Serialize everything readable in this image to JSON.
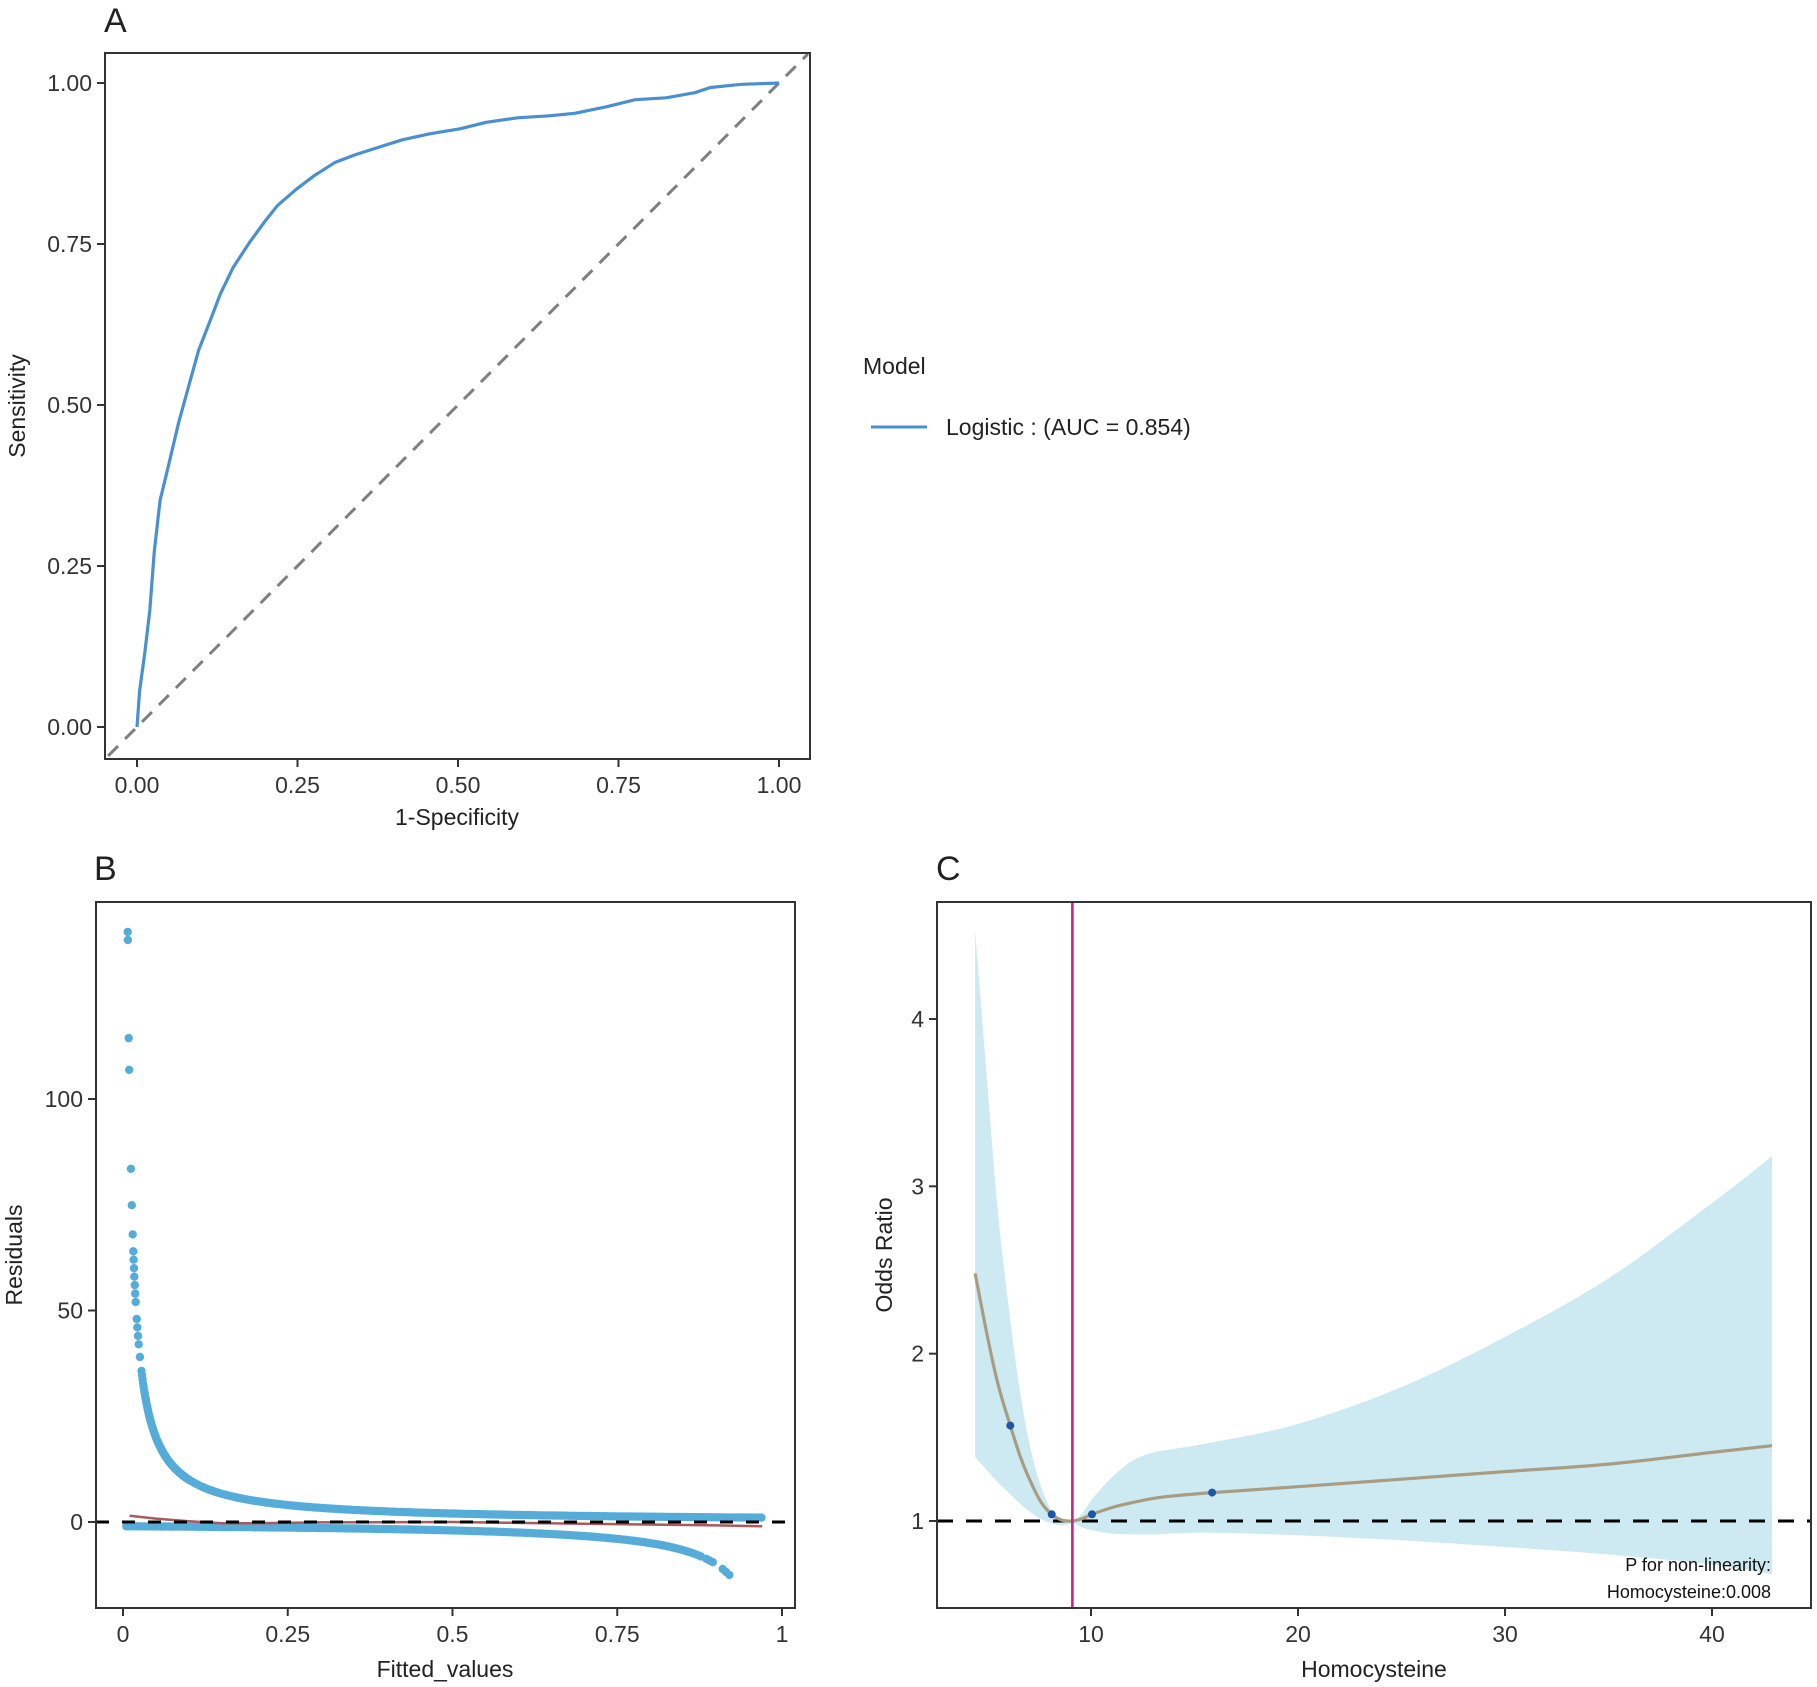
{
  "colors": {
    "roc_line": "#4A90D0",
    "diagonal": "#7F7F7F",
    "scatter": "#56ACD8",
    "loess": "#A85A5C",
    "zero_line": "#000000",
    "band": "#CDEAF2",
    "spline": "#A89C82",
    "knots": "#1F56A8",
    "reference_line": "#C2258C",
    "axis": "#333333"
  },
  "chart_data": [
    {
      "id": "A",
      "type": "line",
      "panel_label": "A",
      "xlabel": "1-Specificity",
      "ylabel": "Sensitivity",
      "xlim": [
        0,
        1
      ],
      "ylim": [
        0,
        1
      ],
      "xticks": [
        "0.00",
        "0.25",
        "0.50",
        "0.75",
        "1.00"
      ],
      "yticks": [
        "0.00",
        "0.25",
        "0.50",
        "0.75",
        "1.00"
      ],
      "grid": false,
      "legend": {
        "title": "Model",
        "placement": "right",
        "entries": [
          {
            "label": "Logistic : (AUC = 0.854)"
          }
        ]
      },
      "reference_diagonal": true,
      "series": [
        {
          "name": "Logistic",
          "auc": 0.854,
          "x": [
            0,
            0.004,
            0.012,
            0.02,
            0.027,
            0.036,
            0.049,
            0.065,
            0.081,
            0.096,
            0.114,
            0.13,
            0.15,
            0.175,
            0.199,
            0.219,
            0.248,
            0.276,
            0.309,
            0.341,
            0.382,
            0.414,
            0.455,
            0.504,
            0.544,
            0.593,
            0.642,
            0.682,
            0.731,
            0.776,
            0.824,
            0.869,
            0.893,
            0.942,
            1.0
          ],
          "y": [
            0,
            0.056,
            0.114,
            0.181,
            0.273,
            0.352,
            0.406,
            0.473,
            0.531,
            0.585,
            0.631,
            0.673,
            0.714,
            0.752,
            0.785,
            0.81,
            0.835,
            0.856,
            0.877,
            0.889,
            0.902,
            0.912,
            0.921,
            0.929,
            0.939,
            0.946,
            0.949,
            0.953,
            0.963,
            0.974,
            0.977,
            0.985,
            0.993,
            0.998,
            1.0
          ]
        }
      ]
    },
    {
      "id": "B",
      "type": "scatter",
      "panel_label": "B",
      "xlabel": "Fitted_values",
      "ylabel": "Residuals",
      "xlim": [
        0,
        1
      ],
      "ylim": [
        -20,
        145
      ],
      "xticks": [
        "0",
        "0.25",
        "0.5",
        "0.75",
        "1"
      ],
      "xtick_values": [
        0,
        0.25,
        0.5,
        0.75,
        1
      ],
      "yticks": [
        "0",
        "50",
        "100"
      ],
      "ytick_values": [
        0,
        50,
        100
      ],
      "grid": false,
      "reference_hline": 0,
      "upper_outliers": [
        {
          "x": 0.0072,
          "y": 139.5
        },
        {
          "x": 0.0073,
          "y": 137.6
        },
        {
          "x": 0.0087,
          "y": 114.4
        },
        {
          "x": 0.0094,
          "y": 106.9
        },
        {
          "x": 0.012,
          "y": 83.5
        },
        {
          "x": 0.0134,
          "y": 74.9
        },
        {
          "x": 0.0147,
          "y": 68.0
        },
        {
          "x": 0.0156,
          "y": 64.0
        },
        {
          "x": 0.0161,
          "y": 62.0
        },
        {
          "x": 0.0167,
          "y": 60.0
        },
        {
          "x": 0.0172,
          "y": 58.0
        },
        {
          "x": 0.0179,
          "y": 56.0
        },
        {
          "x": 0.0185,
          "y": 54.0
        },
        {
          "x": 0.0192,
          "y": 52.0
        },
        {
          "x": 0.0208,
          "y": 48.0
        },
        {
          "x": 0.0217,
          "y": 46.0
        },
        {
          "x": 0.0227,
          "y": 44.0
        },
        {
          "x": 0.0238,
          "y": 42.0
        },
        {
          "x": 0.0256,
          "y": 39.0
        }
      ],
      "series": [
        {
          "name": "residual_upper_branch",
          "formula": "1/fitted",
          "x_range": [
            0.028,
            0.97
          ]
        },
        {
          "name": "residual_lower_branch",
          "formula": "-1/(1-fitted)",
          "x_range": [
            0.005,
            0.88
          ]
        },
        {
          "name": "residual_lower_tail",
          "x": [
            0.885,
            0.89,
            0.895,
            0.91,
            0.915,
            0.92
          ],
          "y": [
            -8.7,
            -9.1,
            -9.5,
            -11.1,
            -11.8,
            -12.5
          ]
        },
        {
          "name": "loess_smooth",
          "x": [
            0.01,
            0.05,
            0.1,
            0.15,
            0.2,
            0.3,
            0.5,
            0.7,
            0.9,
            0.97
          ],
          "y": [
            1.5,
            0.8,
            0.2,
            -0.3,
            -0.3,
            -0.1,
            0.0,
            -0.4,
            -0.8,
            -1.0
          ]
        }
      ]
    },
    {
      "id": "C",
      "type": "line",
      "panel_label": "C",
      "xlabel": "Homocysteine",
      "ylabel": "Odds Ratio",
      "xlim": [
        3,
        44.5
      ],
      "ylim": [
        0.52,
        4.7
      ],
      "xticks": [
        "10",
        "20",
        "30",
        "40"
      ],
      "xtick_values": [
        10,
        20,
        30,
        40
      ],
      "yticks": [
        "1",
        "2",
        "3",
        "4"
      ],
      "ytick_values": [
        1,
        2,
        3,
        4
      ],
      "grid": false,
      "reference_hline": 1,
      "reference_vline": 9.1,
      "annotation": [
        "P for non-linearity:",
        "Homocysteine:0.008"
      ],
      "series": [
        {
          "name": "odds_ratio",
          "x": [
            4.4,
            5.0,
            5.5,
            6.1,
            6.6,
            7.1,
            7.6,
            8.1,
            8.6,
            9.1,
            9.6,
            10.05,
            11,
            12,
            13,
            14,
            15.85,
            20,
            25,
            30,
            35,
            40,
            42.9
          ],
          "y": [
            2.48,
            2.1,
            1.82,
            1.57,
            1.38,
            1.23,
            1.11,
            1.04,
            1.005,
            1.0,
            1.015,
            1.04,
            1.08,
            1.11,
            1.135,
            1.15,
            1.17,
            1.205,
            1.25,
            1.295,
            1.34,
            1.41,
            1.45
          ]
        },
        {
          "name": "ci_upper",
          "x": [
            4.4,
            5.0,
            5.5,
            6.1,
            6.6,
            7.1,
            7.6,
            8.1,
            8.6,
            9.1,
            9.6,
            10.05,
            11,
            12,
            13,
            14,
            15.85,
            20,
            25,
            30,
            35,
            40,
            42.9
          ],
          "y": [
            4.53,
            3.6,
            2.85,
            2.2,
            1.75,
            1.42,
            1.2,
            1.06,
            1.01,
            1.0,
            1.05,
            1.13,
            1.26,
            1.36,
            1.41,
            1.43,
            1.47,
            1.58,
            1.8,
            2.1,
            2.45,
            2.9,
            3.18
          ]
        },
        {
          "name": "ci_lower",
          "x": [
            4.4,
            5.0,
            5.5,
            6.1,
            6.6,
            7.1,
            7.6,
            8.1,
            8.6,
            9.1,
            9.6,
            10.05,
            11,
            12,
            13,
            14,
            15.85,
            20,
            25,
            30,
            35,
            40,
            42.9
          ],
          "y": [
            1.38,
            1.3,
            1.23,
            1.16,
            1.1,
            1.05,
            1.01,
            0.985,
            0.975,
            0.985,
            0.96,
            0.945,
            0.925,
            0.92,
            0.92,
            0.925,
            0.93,
            0.915,
            0.885,
            0.845,
            0.8,
            0.74,
            0.68
          ]
        },
        {
          "name": "knots",
          "x": [
            6.1,
            8.1,
            10.05,
            15.85
          ],
          "y": [
            1.57,
            1.04,
            1.04,
            1.17
          ]
        }
      ]
    }
  ]
}
